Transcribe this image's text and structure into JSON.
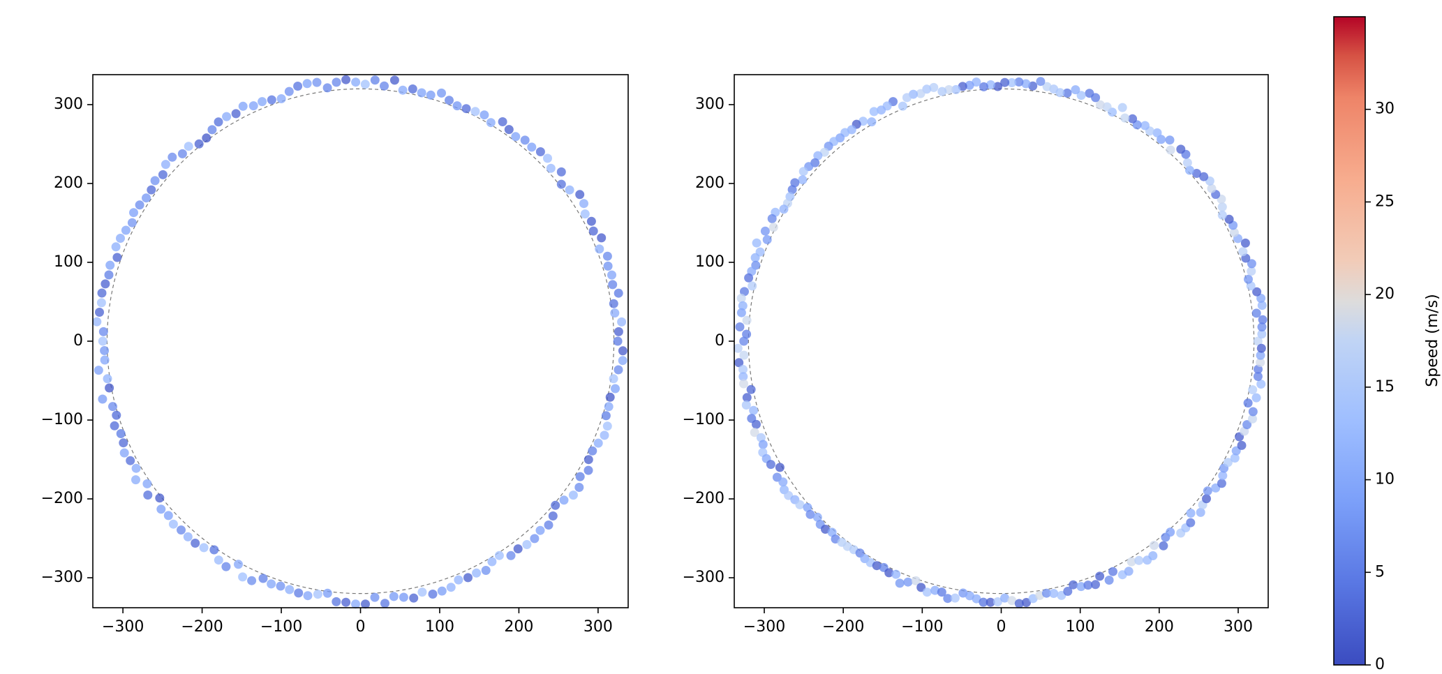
{
  "chart_data": [
    {
      "type": "scatter",
      "panel": "left",
      "title": "",
      "xlabel": "",
      "ylabel": "",
      "xlim": [
        -338,
        338
      ],
      "ylim": [
        -338,
        338
      ],
      "xticks": [
        -300,
        -200,
        -100,
        0,
        100,
        200,
        300
      ],
      "yticks": [
        -300,
        -200,
        -100,
        0,
        100,
        200,
        300
      ],
      "xtick_labels": [
        "−300",
        "−200",
        "−100",
        "0",
        "100",
        "200",
        "300"
      ],
      "ytick_labels": [
        "−300",
        "−200",
        "−100",
        "0",
        "100",
        "200",
        "300"
      ],
      "reference_circle": {
        "radius": 320,
        "style": "dashed",
        "color": "#777777"
      },
      "point_radius": 328,
      "point_count": 170,
      "point_angles_deg_start": 0,
      "speed_range": [
        1,
        14
      ],
      "speed_seed": 11,
      "marker_alpha": 0.75
    },
    {
      "type": "scatter",
      "panel": "right",
      "title": "",
      "xlabel": "",
      "ylabel": "",
      "xlim": [
        -338,
        338
      ],
      "ylim": [
        -338,
        338
      ],
      "xticks": [
        -300,
        -200,
        -100,
        0,
        100,
        200,
        300
      ],
      "yticks": [
        -300,
        -200,
        -100,
        0,
        100,
        200,
        300
      ],
      "xtick_labels": [
        "−300",
        "−200",
        "−100",
        "0",
        "100",
        "200",
        "300"
      ],
      "ytick_labels": [
        "−300",
        "−200",
        "−100",
        "0",
        "100",
        "200",
        "300"
      ],
      "reference_circle": {
        "radius": 320,
        "style": "dashed",
        "color": "#777777"
      },
      "point_radius": 328,
      "point_count": 230,
      "point_angles_deg_start": 0,
      "speed_range": [
        1,
        19
      ],
      "speed_seed": 29,
      "marker_alpha": 0.75
    }
  ],
  "colorbar": {
    "label": "Speed (m/s)",
    "colormap": "coolwarm",
    "range": [
      0,
      35
    ],
    "ticks": [
      0,
      5,
      10,
      15,
      20,
      25,
      30
    ],
    "tick_labels": [
      "0",
      "5",
      "10",
      "15",
      "20",
      "25",
      "30"
    ],
    "colors": {
      "low": "#3b4cc0",
      "mid": "#dddddd",
      "high": "#b40426"
    }
  }
}
